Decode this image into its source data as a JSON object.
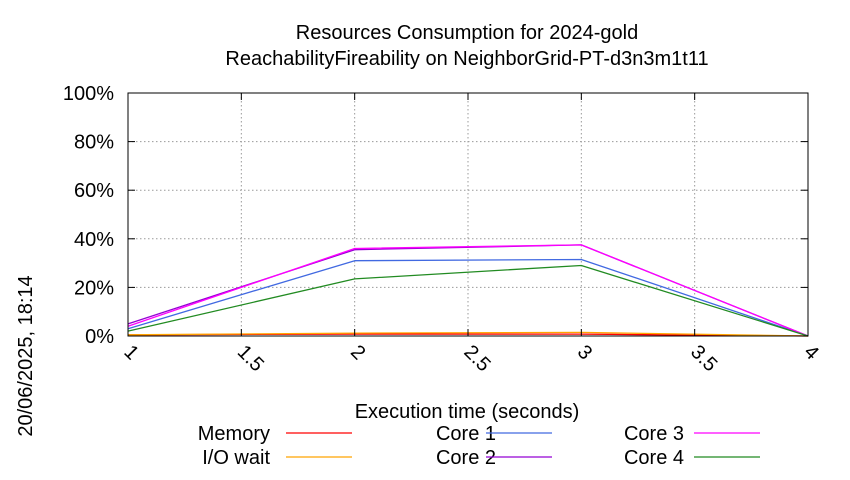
{
  "chart_data": {
    "type": "line",
    "title": "Resources Consumption for 2024-gold",
    "subtitle": "ReachabilityFireability on NeighborGrid-PT-d3n3m1t11",
    "xlabel": "Execution time (seconds)",
    "ylabel": "",
    "timestamp": "20/06/2025, 18:14",
    "xlim": [
      1,
      4
    ],
    "ylim": [
      0,
      100
    ],
    "x_ticks": [
      "1",
      "1.5",
      "2",
      "2.5",
      "3",
      "3.5",
      "4"
    ],
    "y_ticks": [
      "0%",
      "20%",
      "40%",
      "60%",
      "80%",
      "100%"
    ],
    "grid": true,
    "legend_position": "bottom",
    "series": [
      {
        "name": "Memory",
        "color": "#ff0000",
        "x": [
          1,
          2,
          3,
          4
        ],
        "y": [
          0.5,
          0.8,
          0.8,
          0
        ]
      },
      {
        "name": "I/O wait",
        "color": "#ffa500",
        "x": [
          1,
          2,
          3,
          4
        ],
        "y": [
          0.5,
          1.2,
          1.5,
          0
        ]
      },
      {
        "name": "Core 1",
        "color": "#4169e1",
        "x": [
          1,
          2,
          3,
          4
        ],
        "y": [
          3,
          31,
          31.5,
          0
        ]
      },
      {
        "name": "Core 2",
        "color": "#9400d3",
        "x": [
          1,
          2,
          3,
          4
        ],
        "y": [
          5,
          35.5,
          37.5,
          0
        ]
      },
      {
        "name": "Core 3",
        "color": "#ff00ff",
        "x": [
          1,
          2,
          3,
          4
        ],
        "y": [
          4,
          36,
          37.5,
          0
        ]
      },
      {
        "name": "Core 4",
        "color": "#228b22",
        "x": [
          1,
          2,
          3,
          4
        ],
        "y": [
          2,
          23.5,
          29,
          0
        ]
      }
    ]
  }
}
